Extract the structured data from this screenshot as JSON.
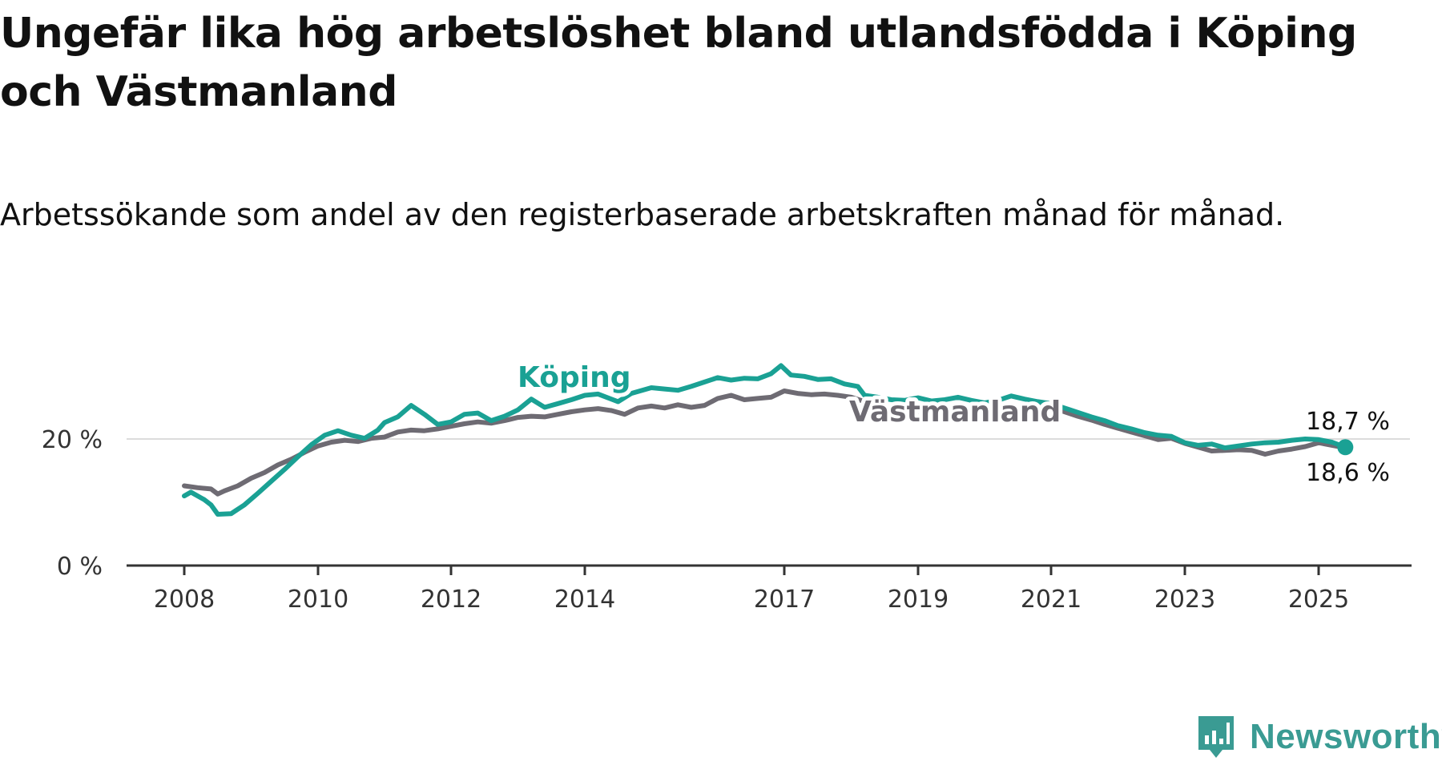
{
  "title": "Ungefär lika hög arbetslöshet bland utlandsfödda i Köping och Västmanland",
  "subtitle": "Arbetssökande som andel av den registerbaserade arbetskraften månad för månad.",
  "brand": {
    "name": "Newsworthy",
    "icon": "newsworthy-logo-icon",
    "color": "#3a9b93"
  },
  "chart_data": {
    "type": "line",
    "title": "Ungefär lika hög arbetslöshet bland utlandsfödda i Köping och Västmanland",
    "subtitle": "Arbetssökande som andel av den registerbaserade arbetskraften månad för månad.",
    "xlabel": "",
    "ylabel": "",
    "xlim": [
      2008.0,
      2026.0
    ],
    "ylim": [
      0,
      30
    ],
    "x_ticks": [
      {
        "value": 2008.0,
        "label": "2008"
      },
      {
        "value": 2010.0,
        "label": "2010"
      },
      {
        "value": 2012.0,
        "label": "2012"
      },
      {
        "value": 2014.0,
        "label": "2014"
      },
      {
        "value": 2017.0,
        "label": "2017"
      },
      {
        "value": 2019.0,
        "label": "2019"
      },
      {
        "value": 2021.0,
        "label": "2021"
      },
      {
        "value": 2023.0,
        "label": "2023"
      },
      {
        "value": 2025.0,
        "label": "2025"
      }
    ],
    "y_ticks": [
      {
        "value": 0,
        "label": "0 %"
      },
      {
        "value": 20,
        "label": "20 %"
      }
    ],
    "grid": {
      "y": true,
      "x": false
    },
    "series": [
      {
        "name": "Västmanland",
        "color": "#6e6b73",
        "end_label": "18,6 %",
        "points": [
          [
            2008.0,
            12.6
          ],
          [
            2008.2,
            12.3
          ],
          [
            2008.4,
            12.1
          ],
          [
            2008.5,
            11.3
          ],
          [
            2008.6,
            11.8
          ],
          [
            2008.8,
            12.6
          ],
          [
            2009.0,
            13.8
          ],
          [
            2009.2,
            14.7
          ],
          [
            2009.4,
            15.9
          ],
          [
            2009.6,
            16.8
          ],
          [
            2009.8,
            17.9
          ],
          [
            2010.0,
            18.9
          ],
          [
            2010.2,
            19.5
          ],
          [
            2010.4,
            19.8
          ],
          [
            2010.6,
            19.6
          ],
          [
            2010.8,
            20.1
          ],
          [
            2011.0,
            20.3
          ],
          [
            2011.2,
            21.1
          ],
          [
            2011.4,
            21.4
          ],
          [
            2011.6,
            21.3
          ],
          [
            2011.8,
            21.6
          ],
          [
            2012.0,
            22.0
          ],
          [
            2012.2,
            22.4
          ],
          [
            2012.4,
            22.7
          ],
          [
            2012.6,
            22.5
          ],
          [
            2012.8,
            22.9
          ],
          [
            2013.0,
            23.4
          ],
          [
            2013.2,
            23.6
          ],
          [
            2013.4,
            23.5
          ],
          [
            2013.6,
            23.9
          ],
          [
            2013.8,
            24.3
          ],
          [
            2014.0,
            24.6
          ],
          [
            2014.2,
            24.8
          ],
          [
            2014.4,
            24.5
          ],
          [
            2014.6,
            23.9
          ],
          [
            2014.8,
            24.9
          ],
          [
            2015.0,
            25.2
          ],
          [
            2015.2,
            24.9
          ],
          [
            2015.4,
            25.4
          ],
          [
            2015.6,
            25.0
          ],
          [
            2015.8,
            25.3
          ],
          [
            2016.0,
            26.4
          ],
          [
            2016.2,
            26.9
          ],
          [
            2016.4,
            26.2
          ],
          [
            2016.6,
            26.4
          ],
          [
            2016.8,
            26.6
          ],
          [
            2017.0,
            27.6
          ],
          [
            2017.2,
            27.2
          ],
          [
            2017.4,
            27.0
          ],
          [
            2017.6,
            27.1
          ],
          [
            2017.8,
            26.9
          ],
          [
            2018.0,
            26.6
          ],
          [
            2018.2,
            25.9
          ],
          [
            2018.4,
            25.3
          ],
          [
            2018.6,
            24.9
          ],
          [
            2018.8,
            24.6
          ],
          [
            2019.0,
            24.4
          ],
          [
            2019.2,
            24.1
          ],
          [
            2019.4,
            24.4
          ],
          [
            2019.6,
            24.3
          ],
          [
            2019.8,
            24.6
          ],
          [
            2020.0,
            25.2
          ],
          [
            2020.2,
            25.0
          ],
          [
            2020.4,
            24.9
          ],
          [
            2020.6,
            25.1
          ],
          [
            2020.8,
            25.2
          ],
          [
            2021.0,
            24.9
          ],
          [
            2021.2,
            24.3
          ],
          [
            2021.4,
            23.6
          ],
          [
            2021.6,
            23.0
          ],
          [
            2021.8,
            22.3
          ],
          [
            2022.0,
            21.7
          ],
          [
            2022.2,
            21.1
          ],
          [
            2022.4,
            20.5
          ],
          [
            2022.6,
            19.9
          ],
          [
            2022.8,
            20.1
          ],
          [
            2023.0,
            19.3
          ],
          [
            2023.2,
            18.7
          ],
          [
            2023.4,
            18.1
          ],
          [
            2023.6,
            18.2
          ],
          [
            2023.8,
            18.3
          ],
          [
            2024.0,
            18.2
          ],
          [
            2024.2,
            17.6
          ],
          [
            2024.4,
            18.1
          ],
          [
            2024.6,
            18.4
          ],
          [
            2024.8,
            18.8
          ],
          [
            2025.0,
            19.4
          ],
          [
            2025.2,
            19.0
          ],
          [
            2025.4,
            18.6
          ]
        ]
      },
      {
        "name": "Köping",
        "color": "#1aa194",
        "end_label": "18,7 %",
        "points": [
          [
            2008.0,
            11.0
          ],
          [
            2008.1,
            11.6
          ],
          [
            2008.3,
            10.4
          ],
          [
            2008.4,
            9.6
          ],
          [
            2008.5,
            8.1
          ],
          [
            2008.7,
            8.2
          ],
          [
            2008.9,
            9.6
          ],
          [
            2009.1,
            11.4
          ],
          [
            2009.3,
            13.3
          ],
          [
            2009.5,
            15.2
          ],
          [
            2009.7,
            17.2
          ],
          [
            2009.9,
            19.1
          ],
          [
            2010.1,
            20.6
          ],
          [
            2010.3,
            21.3
          ],
          [
            2010.5,
            20.6
          ],
          [
            2010.7,
            20.1
          ],
          [
            2010.9,
            21.4
          ],
          [
            2011.0,
            22.6
          ],
          [
            2011.2,
            23.5
          ],
          [
            2011.4,
            25.3
          ],
          [
            2011.6,
            23.9
          ],
          [
            2011.8,
            22.3
          ],
          [
            2012.0,
            22.7
          ],
          [
            2012.2,
            23.9
          ],
          [
            2012.4,
            24.1
          ],
          [
            2012.6,
            22.9
          ],
          [
            2012.8,
            23.6
          ],
          [
            2013.0,
            24.6
          ],
          [
            2013.2,
            26.3
          ],
          [
            2013.4,
            25.0
          ],
          [
            2013.6,
            25.6
          ],
          [
            2013.8,
            26.2
          ],
          [
            2014.0,
            26.9
          ],
          [
            2014.2,
            27.1
          ],
          [
            2014.5,
            25.9
          ],
          [
            2014.7,
            27.2
          ],
          [
            2015.0,
            28.1
          ],
          [
            2015.2,
            27.9
          ],
          [
            2015.4,
            27.7
          ],
          [
            2015.6,
            28.3
          ],
          [
            2015.8,
            29.0
          ],
          [
            2016.0,
            29.7
          ],
          [
            2016.2,
            29.3
          ],
          [
            2016.4,
            29.6
          ],
          [
            2016.6,
            29.5
          ],
          [
            2016.8,
            30.3
          ],
          [
            2016.95,
            31.6
          ],
          [
            2017.1,
            30.1
          ],
          [
            2017.3,
            29.9
          ],
          [
            2017.5,
            29.4
          ],
          [
            2017.7,
            29.5
          ],
          [
            2017.9,
            28.7
          ],
          [
            2018.1,
            28.3
          ],
          [
            2018.2,
            26.9
          ],
          [
            2018.4,
            26.6
          ],
          [
            2018.6,
            26.2
          ],
          [
            2018.8,
            26.1
          ],
          [
            2019.0,
            26.5
          ],
          [
            2019.2,
            26.0
          ],
          [
            2019.4,
            26.2
          ],
          [
            2019.6,
            26.6
          ],
          [
            2019.8,
            26.1
          ],
          [
            2020.0,
            25.7
          ],
          [
            2020.2,
            26.1
          ],
          [
            2020.4,
            26.8
          ],
          [
            2020.6,
            26.3
          ],
          [
            2020.8,
            25.9
          ],
          [
            2021.0,
            25.6
          ],
          [
            2021.2,
            24.9
          ],
          [
            2021.4,
            24.2
          ],
          [
            2021.6,
            23.5
          ],
          [
            2021.8,
            22.9
          ],
          [
            2022.0,
            22.1
          ],
          [
            2022.2,
            21.6
          ],
          [
            2022.4,
            21.0
          ],
          [
            2022.6,
            20.6
          ],
          [
            2022.8,
            20.4
          ],
          [
            2023.0,
            19.4
          ],
          [
            2023.2,
            19.0
          ],
          [
            2023.4,
            19.2
          ],
          [
            2023.6,
            18.6
          ],
          [
            2023.8,
            18.9
          ],
          [
            2024.0,
            19.2
          ],
          [
            2024.2,
            19.4
          ],
          [
            2024.4,
            19.5
          ],
          [
            2024.6,
            19.8
          ],
          [
            2024.8,
            20.0
          ],
          [
            2025.0,
            19.9
          ],
          [
            2025.2,
            19.5
          ],
          [
            2025.4,
            18.7
          ]
        ]
      }
    ]
  }
}
